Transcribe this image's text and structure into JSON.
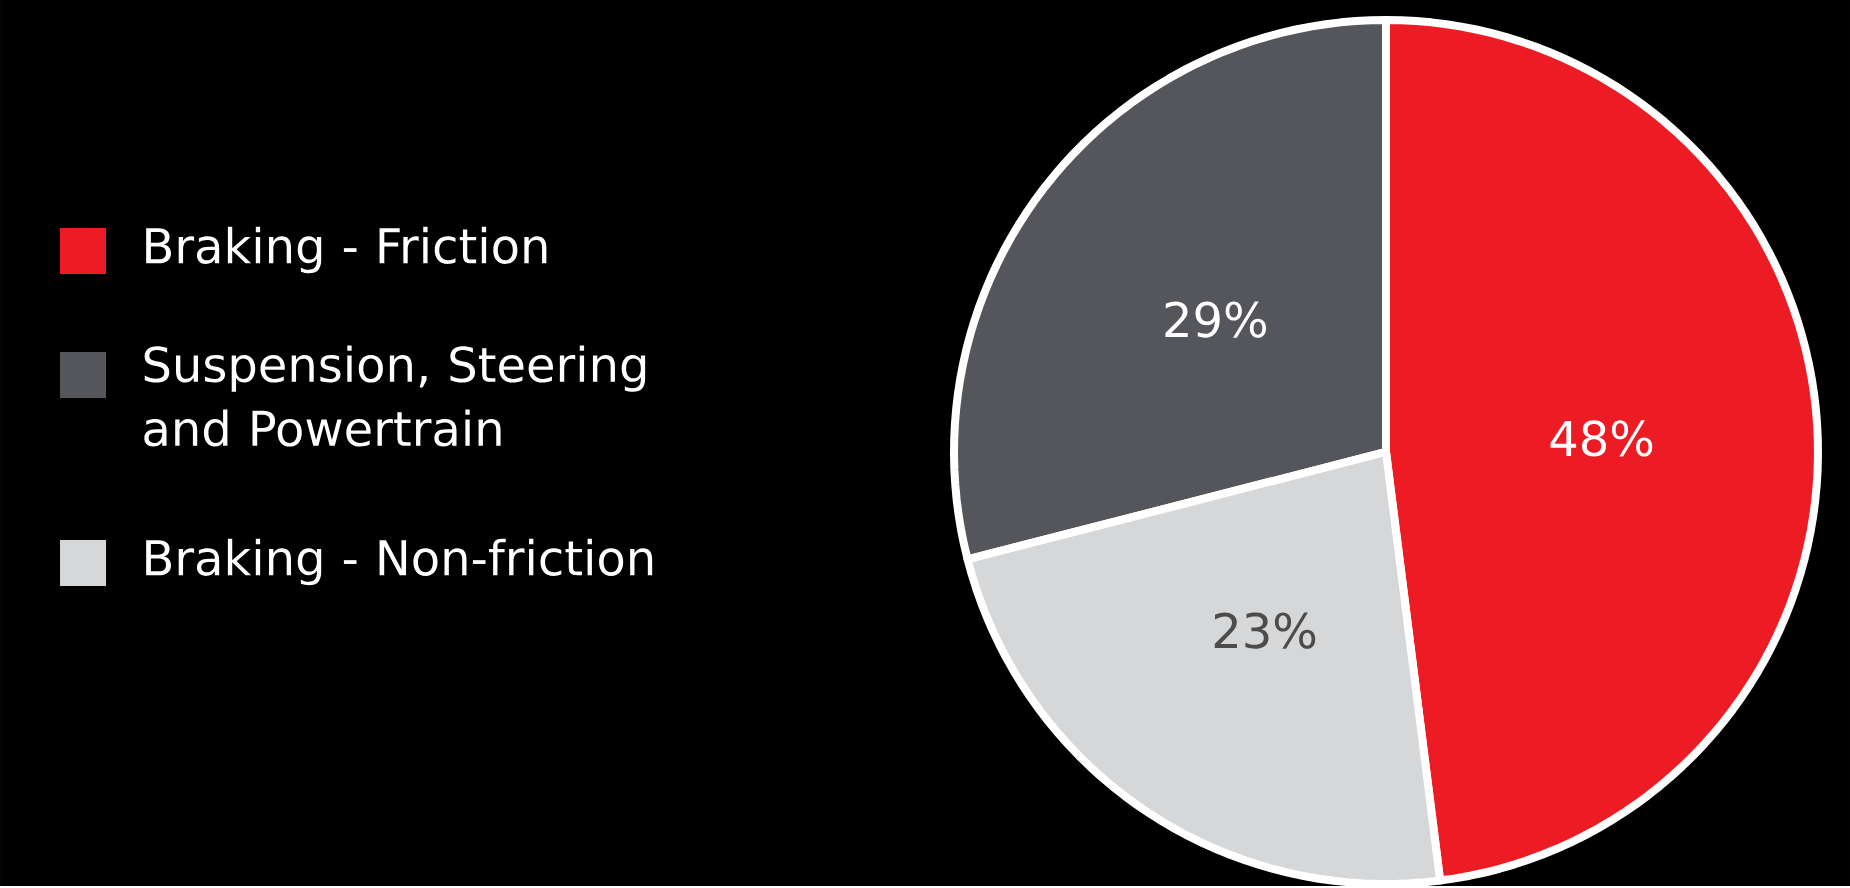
{
  "chart_data": {
    "type": "pie",
    "categories": [
      "Braking - Friction",
      "Suspension, Steering and Powertrain",
      "Braking - Non-friction"
    ],
    "values": [
      48,
      29,
      23
    ],
    "colors": [
      "#ed1c24",
      "#55565b",
      "#d6d7d9"
    ],
    "value_labels": [
      "48%",
      "29%",
      "23%"
    ],
    "legend": "left"
  }
}
